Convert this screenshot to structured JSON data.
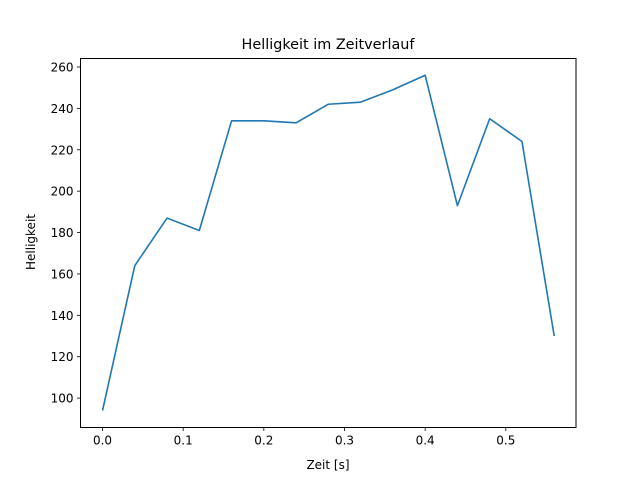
{
  "chart_data": {
    "type": "line",
    "title": "Helligkeit im Zeitverlauf",
    "xlabel": "Zeit [s]",
    "ylabel": "Helligkeit",
    "xlim": [
      -0.0273,
      0.587
    ],
    "ylim": [
      85.8,
      264.1
    ],
    "xticks": [
      0.0,
      0.1,
      0.2,
      0.3,
      0.4,
      0.5
    ],
    "xtick_labels": [
      "0.0",
      "0.1",
      "0.2",
      "0.3",
      "0.4",
      "0.5"
    ],
    "yticks": [
      100,
      120,
      140,
      160,
      180,
      200,
      220,
      240,
      260
    ],
    "ytick_labels": [
      "100",
      "120",
      "140",
      "160",
      "180",
      "200",
      "220",
      "240",
      "260"
    ],
    "grid": false,
    "series": [
      {
        "name": "Helligkeit",
        "color": "#1f77b4",
        "x": [
          0.0,
          0.04,
          0.08,
          0.12,
          0.16,
          0.2,
          0.24,
          0.28,
          0.32,
          0.36,
          0.4,
          0.44,
          0.48,
          0.52,
          0.56
        ],
        "y": [
          94,
          164,
          187,
          181,
          234,
          234,
          233,
          242,
          243,
          249,
          256,
          193,
          235,
          224,
          130
        ]
      }
    ]
  }
}
